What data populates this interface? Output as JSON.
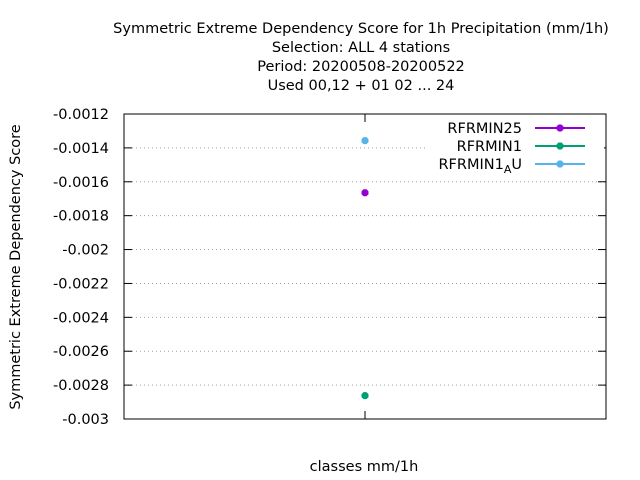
{
  "chart_data": {
    "type": "scatter",
    "title": [
      "Symmetric Extreme Dependency Score  for 1h Precipitation (mm/1h)",
      "Selection: ALL      4 stations",
      "Period: 20200508-20200522",
      "Used  00,12  + 01 02 ... 24"
    ],
    "xlabel": "classes mm/1h",
    "ylabel": "Symmetric Extreme Dependency Score",
    "ylim": [
      -0.003,
      -0.0012
    ],
    "yticks": [
      -0.0012,
      -0.0014,
      -0.0016,
      -0.0018,
      -0.002,
      -0.0022,
      -0.0024,
      -0.0026,
      -0.0028,
      -0.003
    ],
    "ytick_labels": [
      "-0.0012",
      "-0.0014",
      "-0.0016",
      "-0.0018",
      "-0.002",
      "-0.0022",
      "-0.0024",
      "-0.0026",
      "-0.0028",
      "-0.003"
    ],
    "grid": true,
    "legend_position": "top-right",
    "series": [
      {
        "name": "RFRMIN25",
        "color": "#9400d3",
        "x": 0.5,
        "y": -0.001665
      },
      {
        "name": "RFRMIN1",
        "color": "#009e73",
        "x": 0.5,
        "y": -0.002862
      },
      {
        "name": "RFRMIN1_AU",
        "color": "#56b4e9",
        "x": 0.5,
        "y": -0.001357
      }
    ]
  }
}
